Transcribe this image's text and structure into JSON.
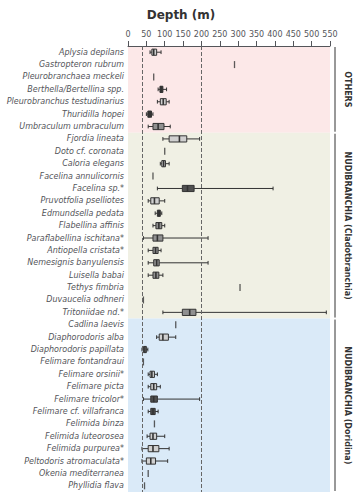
{
  "chart_data": {
    "type": "boxplot",
    "title": "Depth (m)",
    "orientation": "horizontal",
    "grid": false,
    "xlim": [
      0,
      550
    ],
    "xticks": [
      0,
      50,
      100,
      150,
      200,
      250,
      300,
      350,
      400,
      450,
      500,
      550
    ],
    "reference_lines": [
      40,
      200
    ],
    "categories": [
      "Aplysia depilans",
      "Gastropteron rubrum",
      "Pleurobranchaea meckeli",
      "Berthella/Bertellina spp.",
      "Pleurobranchus testudinarius",
      "Thuridilla hopei",
      "Umbraculum umbraculum",
      "Fjordia lineata",
      "Doto cf. coronata",
      "Caloria elegans",
      "Facelina annulicornis",
      "Facelina sp.*",
      "Pruvotfolia pselliotes",
      "Edmundsella pedata",
      "Flabellina affinis",
      "Paraflabellina ischitana*",
      "Antiopella cristata*",
      "Nemesignis banyulensis",
      "Luisella babai",
      "Tethys fimbria",
      "Duvaucelia odhneri",
      "Tritoniidae nd.*",
      "Cadlina laevis",
      "Diaphorodoris alba",
      "Diaphorodoris papillata",
      "Felimare fontandraui",
      "Felimare orsinii*",
      "Felimare picta",
      "Felimare tricolor*",
      "Felimare cf. villafranca",
      "Felimida binza",
      "Felimida luteorosea",
      "Felimida purpurea*",
      "Peltodoris atromaculata*",
      "Okenia mediterranea",
      "Phyllidia flava"
    ],
    "values": [
      [
        60,
        65,
        70,
        78,
        90
      ],
      null,
      null,
      [
        82,
        87,
        90,
        95,
        105
      ],
      [
        80,
        88,
        96,
        104,
        112
      ],
      [
        50,
        54,
        58,
        64,
        68
      ],
      [
        55,
        68,
        82,
        98,
        115
      ],
      [
        95,
        112,
        140,
        160,
        195
      ],
      null,
      [
        88,
        92,
        97,
        102,
        112
      ],
      null,
      [
        80,
        148,
        162,
        180,
        395
      ],
      [
        55,
        62,
        72,
        85,
        100
      ],
      [
        74,
        80,
        84,
        88,
        92
      ],
      [
        68,
        76,
        84,
        92,
        100
      ],
      [
        42,
        68,
        80,
        95,
        218
      ],
      [
        55,
        68,
        75,
        82,
        90
      ],
      [
        55,
        70,
        78,
        85,
        218
      ],
      [
        55,
        68,
        76,
        84,
        95
      ],
      null,
      null,
      [
        95,
        148,
        168,
        185,
        540
      ],
      null,
      [
        78,
        85,
        95,
        110,
        130
      ],
      [
        38,
        42,
        46,
        50,
        54
      ],
      null,
      [
        55,
        60,
        65,
        72,
        80
      ],
      [
        55,
        62,
        70,
        78,
        88
      ],
      [
        42,
        62,
        70,
        80,
        195
      ],
      [
        55,
        62,
        68,
        74,
        82
      ],
      null,
      [
        52,
        60,
        68,
        78,
        100
      ],
      [
        38,
        55,
        68,
        84,
        112
      ],
      [
        38,
        50,
        62,
        75,
        108
      ],
      null,
      null
    ],
    "fliers": [
      [],
      [
        290
      ],
      [
        70
      ],
      [],
      [],
      [],
      [],
      [],
      [
        100
      ],
      [],
      [
        68
      ],
      [],
      [],
      [],
      [],
      [],
      [],
      [],
      [],
      [
        305
      ],
      [
        42
      ],
      [],
      [
        130
      ],
      [],
      [],
      [
        42
      ],
      [],
      [],
      [],
      [],
      [
        72
      ],
      [],
      [],
      [],
      [
        55
      ],
      [
        45
      ]
    ],
    "colors": [
      "#d0d0d0",
      "#d0d0d0",
      "#d0d0d0",
      "#303030",
      "#d0d0d0",
      "#303030",
      "#909090",
      "#d0d0d0",
      "#d0d0d0",
      "#d0d0d0",
      "#d0d0d0",
      "#505050",
      "#d0d0d0",
      "#303030",
      "#909090",
      "#909090",
      "#909090",
      "#909090",
      "#909090",
      "#d0d0d0",
      "#d0d0d0",
      "#909090",
      "#d0d0d0",
      "#d0d0d0",
      "#909090",
      "#d0d0d0",
      "#d0d0d0",
      "#d0d0d0",
      "#505050",
      "#505050",
      "#d0d0d0",
      "#d0d0d0",
      "#d0d0d0",
      "#d0d0d0",
      "#d0d0d0",
      "#d0d0d0"
    ],
    "groups": [
      {
        "name": "OTHERS",
        "start": 0,
        "end": 7,
        "color": "#fce8e8"
      },
      {
        "name": "NUDIBRANCHIA (Cladotbranchia)",
        "start": 7,
        "end": 22,
        "color": "#f0f0e4"
      },
      {
        "name": "NUDIBRANCHIA (Doridina)",
        "start": 22,
        "end": 36,
        "color": "#daeaf8"
      }
    ]
  }
}
